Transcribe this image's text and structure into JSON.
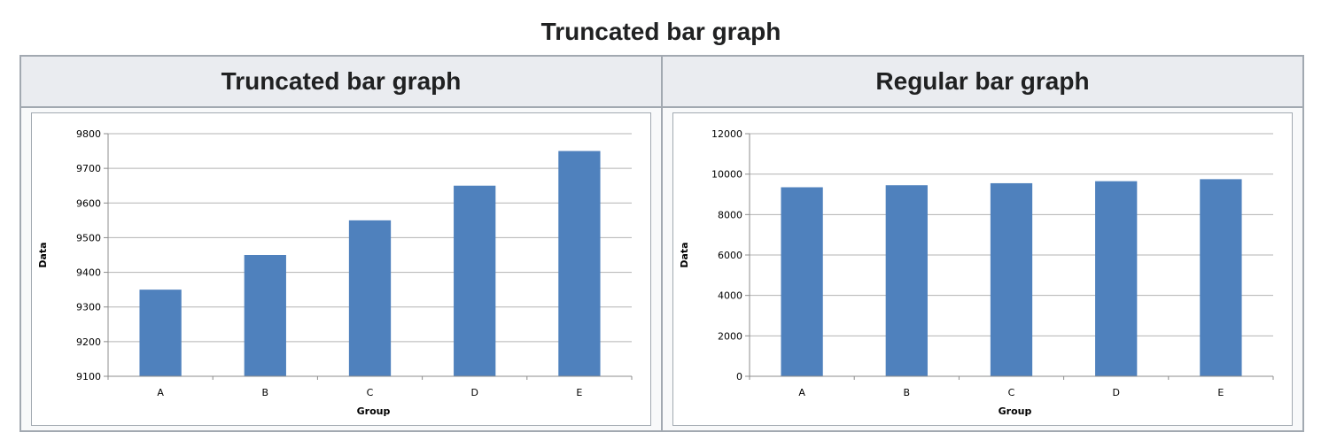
{
  "page": {
    "title": "Truncated bar graph"
  },
  "table": {
    "headers": [
      "Truncated bar graph",
      "Regular bar graph"
    ]
  },
  "colors": {
    "bar": "#4f81bd",
    "grid": "#b3b3b3",
    "axis": "#8c8c8c"
  },
  "chart_data": [
    {
      "type": "bar",
      "title": "Truncated bar graph",
      "categories": [
        "A",
        "B",
        "C",
        "D",
        "E"
      ],
      "values": [
        9350,
        9450,
        9550,
        9650,
        9750
      ],
      "xlabel": "Group",
      "ylabel": "Data",
      "ylim": [
        9100,
        9800
      ],
      "yticks": [
        9100,
        9200,
        9300,
        9400,
        9500,
        9600,
        9700,
        9800
      ],
      "grid": true,
      "legend": "none"
    },
    {
      "type": "bar",
      "title": "Regular bar graph",
      "categories": [
        "A",
        "B",
        "C",
        "D",
        "E"
      ],
      "values": [
        9350,
        9450,
        9550,
        9650,
        9750
      ],
      "xlabel": "Group",
      "ylabel": "Data",
      "ylim": [
        0,
        12000
      ],
      "yticks": [
        0,
        2000,
        4000,
        6000,
        8000,
        10000,
        12000
      ],
      "grid": true,
      "legend": "none"
    }
  ]
}
